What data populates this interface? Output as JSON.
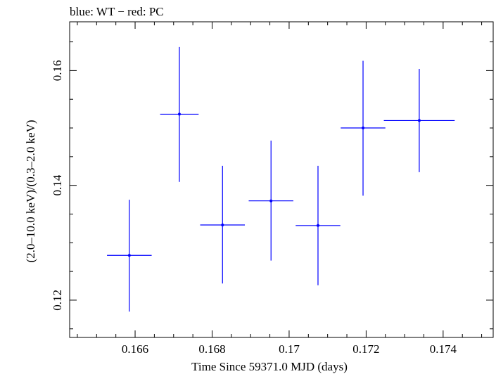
{
  "chart_data": {
    "type": "scatter",
    "title": "blue: WT − red: PC",
    "xlabel": "Time Since 59371.0 MJD (days)",
    "ylabel": "(2.0–10.0 keV)/(0.3–2.0 keV)",
    "xlim": [
      0.1643,
      0.1753
    ],
    "ylim": [
      0.1135,
      0.1685
    ],
    "xticks": [
      {
        "value": 0.166,
        "label": "0.166"
      },
      {
        "value": 0.168,
        "label": "0.168"
      },
      {
        "value": 0.17,
        "label": "0.17"
      },
      {
        "value": 0.172,
        "label": "0.172"
      },
      {
        "value": 0.174,
        "label": "0.174"
      }
    ],
    "yticks": [
      {
        "value": 0.12,
        "label": "0.12"
      },
      {
        "value": 0.14,
        "label": "0.14"
      },
      {
        "value": 0.16,
        "label": "0.16"
      }
    ],
    "grid": false,
    "series": [
      {
        "color": "#0000ff",
        "points": [
          {
            "x": 0.16585,
            "y": 0.1278,
            "xerr_lo": 0.00058,
            "xerr_hi": 0.00058,
            "yerr_lo": 0.0098,
            "yerr_hi": 0.0097
          },
          {
            "x": 0.16715,
            "y": 0.1524,
            "xerr_lo": 0.0005,
            "xerr_hi": 0.0005,
            "yerr_lo": 0.0118,
            "yerr_hi": 0.0117
          },
          {
            "x": 0.16827,
            "y": 0.1331,
            "xerr_lo": 0.00058,
            "xerr_hi": 0.00058,
            "yerr_lo": 0.0102,
            "yerr_hi": 0.0103
          },
          {
            "x": 0.16953,
            "y": 0.1373,
            "xerr_lo": 0.00058,
            "xerr_hi": 0.00058,
            "yerr_lo": 0.0104,
            "yerr_hi": 0.0105
          },
          {
            "x": 0.17075,
            "y": 0.133,
            "xerr_lo": 0.00058,
            "xerr_hi": 0.00058,
            "yerr_lo": 0.0104,
            "yerr_hi": 0.0104
          },
          {
            "x": 0.17192,
            "y": 0.15,
            "xerr_lo": 0.00058,
            "xerr_hi": 0.00058,
            "yerr_lo": 0.0118,
            "yerr_hi": 0.0117
          },
          {
            "x": 0.17338,
            "y": 0.1513,
            "xerr_lo": 0.00092,
            "xerr_hi": 0.00092,
            "yerr_lo": 0.009,
            "yerr_hi": 0.009
          }
        ]
      }
    ]
  }
}
